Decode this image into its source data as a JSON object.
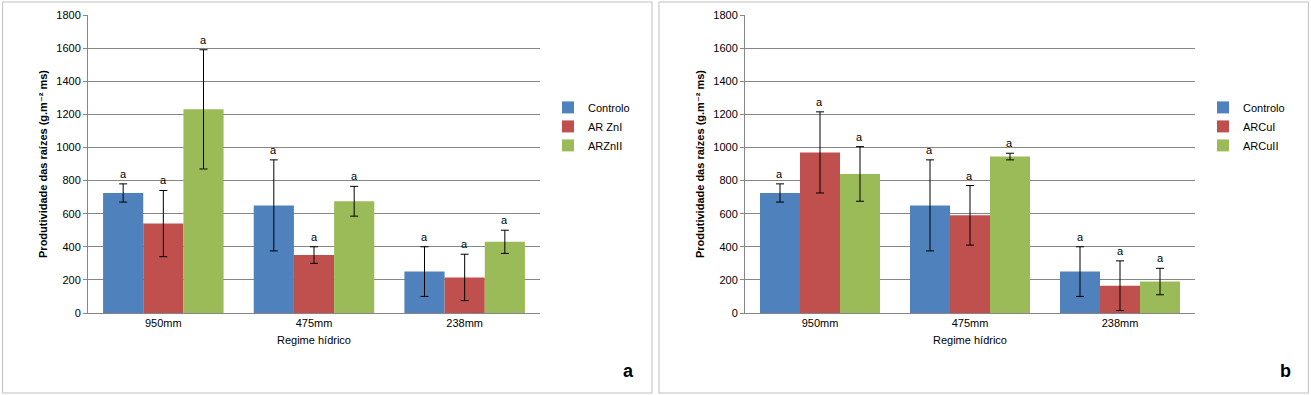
{
  "chart_data": [
    {
      "type": "bar",
      "panel_label": "a",
      "x_label": "Regime hídrico",
      "y_label": "Produtividade das raízes (g.m⁻² ms)",
      "categories": [
        "950mm",
        "475mm",
        "238mm"
      ],
      "series": [
        {
          "name": "Controlo",
          "color": "#4f81bd",
          "values": [
            725,
            650,
            250
          ],
          "errors": [
            55,
            275,
            150
          ],
          "letters": [
            "a",
            "a",
            "a"
          ]
        },
        {
          "name": "AR ZnI",
          "color": "#c0504d",
          "values": [
            540,
            350,
            215
          ],
          "errors": [
            200,
            50,
            140
          ],
          "letters": [
            "a",
            "a",
            "a"
          ]
        },
        {
          "name": "ARZnII",
          "color": "#9bbb59",
          "values": [
            1230,
            675,
            430
          ],
          "errors": [
            360,
            90,
            70
          ],
          "letters": [
            "a",
            "a",
            "a"
          ]
        }
      ],
      "ylim": [
        0,
        1800
      ],
      "yticks": [
        0,
        200,
        400,
        600,
        800,
        1000,
        1200,
        1400,
        1600,
        1800
      ],
      "grid": true,
      "legend": "right"
    },
    {
      "type": "bar",
      "panel_label": "b",
      "x_label": "Regime hídrico",
      "y_label": "Produtividade das raízes (g.m⁻² ms)",
      "categories": [
        "950mm",
        "475mm",
        "238mm"
      ],
      "series": [
        {
          "name": "Controlo",
          "color": "#4f81bd",
          "values": [
            725,
            650,
            250
          ],
          "errors": [
            55,
            275,
            150
          ],
          "letters": [
            "a",
            "a",
            "a"
          ]
        },
        {
          "name": "ARCuI",
          "color": "#c0504d",
          "values": [
            970,
            590,
            165
          ],
          "errors": [
            245,
            180,
            150
          ],
          "letters": [
            "a",
            "a",
            "a"
          ]
        },
        {
          "name": "ARCuII",
          "color": "#9bbb59",
          "values": [
            840,
            945,
            190
          ],
          "errors": [
            165,
            20,
            80
          ],
          "letters": [
            "a",
            "a",
            "a"
          ]
        }
      ],
      "ylim": [
        0,
        1800
      ],
      "yticks": [
        0,
        200,
        400,
        600,
        800,
        1000,
        1200,
        1400,
        1600,
        1800
      ],
      "grid": true,
      "legend": "right"
    }
  ]
}
